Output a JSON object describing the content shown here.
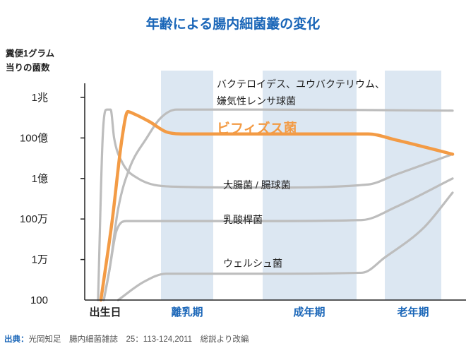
{
  "chart_data": {
    "type": "line",
    "title": "年齢による腸内細菌叢の変化",
    "ylabel_lines": [
      "糞便1グラム",
      "当りの菌数"
    ],
    "y_tick_labels": [
      "100",
      "1万",
      "100万",
      "1億",
      "100億",
      "1兆"
    ],
    "y_log10_values": [
      2,
      4,
      6,
      8,
      10,
      12
    ],
    "ylim_log10": [
      2,
      12
    ],
    "x_labels": [
      {
        "text": "出生日",
        "highlight": false
      },
      {
        "text": "離乳期",
        "highlight": true
      },
      {
        "text": "成年期",
        "highlight": true
      },
      {
        "text": "老年期",
        "highlight": true
      }
    ],
    "x_stage_spans": [
      {
        "label": "出生日",
        "start": 0,
        "end": 0
      },
      {
        "label": "離乳期",
        "start": 1,
        "end": 2
      },
      {
        "label": "成年期",
        "start": 3,
        "end": 4
      },
      {
        "label": "老年期",
        "start": 5,
        "end": 6
      }
    ],
    "x_note": "x is a relative age timeline (0 = birth, 6 = old age), not a numeric axis",
    "grid": false,
    "series": [
      {
        "name": "バクテロイデス、ユウバクテリウム、嫌気性レンサ球菌",
        "highlight": false,
        "points": [
          [
            0.0,
            2.0
          ],
          [
            0.1,
            3.5
          ],
          [
            0.25,
            6.5
          ],
          [
            0.45,
            8.5
          ],
          [
            0.75,
            10.0
          ],
          [
            1.0,
            11.0
          ],
          [
            1.3,
            11.4
          ],
          [
            1.8,
            11.4
          ],
          [
            3.0,
            11.4
          ],
          [
            6.2,
            11.35
          ]
        ]
      },
      {
        "name": "ビフィズス菌",
        "highlight": true,
        "points": [
          [
            -0.05,
            2.0
          ],
          [
            0.15,
            6.0
          ],
          [
            0.32,
            10.0
          ],
          [
            0.42,
            11.3
          ],
          [
            0.52,
            11.2
          ],
          [
            0.8,
            10.8
          ],
          [
            1.1,
            10.3
          ],
          [
            1.4,
            10.2
          ],
          [
            3.0,
            10.2
          ],
          [
            4.4,
            10.2
          ],
          [
            5.2,
            9.9
          ],
          [
            6.2,
            9.2
          ]
        ]
      },
      {
        "name": "大腸菌 / 腸球菌",
        "highlight": false,
        "points": [
          [
            -0.1,
            2.0
          ],
          [
            -0.02,
            10.0
          ],
          [
            0.05,
            11.4
          ],
          [
            0.12,
            11.4
          ],
          [
            0.18,
            10.0
          ],
          [
            0.32,
            8.8
          ],
          [
            0.6,
            8.0
          ],
          [
            1.2,
            7.6
          ],
          [
            3.0,
            7.55
          ],
          [
            4.4,
            7.7
          ],
          [
            5.2,
            8.2
          ],
          [
            6.2,
            9.2
          ]
        ]
      },
      {
        "name": "乳酸桿菌",
        "highlight": false,
        "points": [
          [
            0.0,
            2.0
          ],
          [
            0.1,
            3.5
          ],
          [
            0.22,
            5.4
          ],
          [
            0.4,
            5.9
          ],
          [
            0.8,
            5.9
          ],
          [
            3.0,
            5.9
          ],
          [
            4.2,
            5.95
          ],
          [
            5.2,
            6.6
          ],
          [
            6.2,
            8.0
          ]
        ]
      },
      {
        "name": "ウェルシュ菌",
        "highlight": false,
        "points": [
          [
            0.25,
            2.0
          ],
          [
            0.7,
            2.9
          ],
          [
            1.1,
            3.3
          ],
          [
            1.6,
            3.3
          ],
          [
            3.0,
            3.3
          ],
          [
            4.2,
            3.35
          ],
          [
            5.0,
            4.1
          ],
          [
            5.7,
            5.6
          ],
          [
            6.2,
            7.3
          ]
        ]
      }
    ],
    "annotations": [
      {
        "series": "バクテロイデス、ユウバクテリウム、嫌気性レンサ球菌",
        "lines": [
          "バクテロイデス、ユウバクテリウム、",
          "嫌気性レンサ球菌"
        ],
        "bold": false
      },
      {
        "series": "ビフィズス菌",
        "lines": [
          "ビフィズス菌"
        ],
        "bold": true
      },
      {
        "series": "大腸菌 / 腸球菌",
        "lines": [
          "大腸菌 / 腸球菌"
        ],
        "bold": false
      },
      {
        "series": "乳酸桿菌",
        "lines": [
          "乳酸桿菌"
        ],
        "bold": false
      },
      {
        "series": "ウェルシュ菌",
        "lines": [
          "ウェルシュ菌"
        ],
        "bold": false
      }
    ],
    "source": {
      "label": "出典：",
      "text": "光岡知足　腸内細菌雑誌　25：113-124,2011　総説より改編"
    }
  },
  "colors": {
    "title": "#1a66b8",
    "stage_highlight": "#1a66b8",
    "stage_default": "#222222",
    "band": "#dce7f2",
    "axis": "#222222",
    "highlight_line": "#f39b45",
    "highlight_text": "#f39b45",
    "grey_line": "#bdbdbd",
    "source_label": "#1a66b8",
    "source_text": "#555555"
  }
}
